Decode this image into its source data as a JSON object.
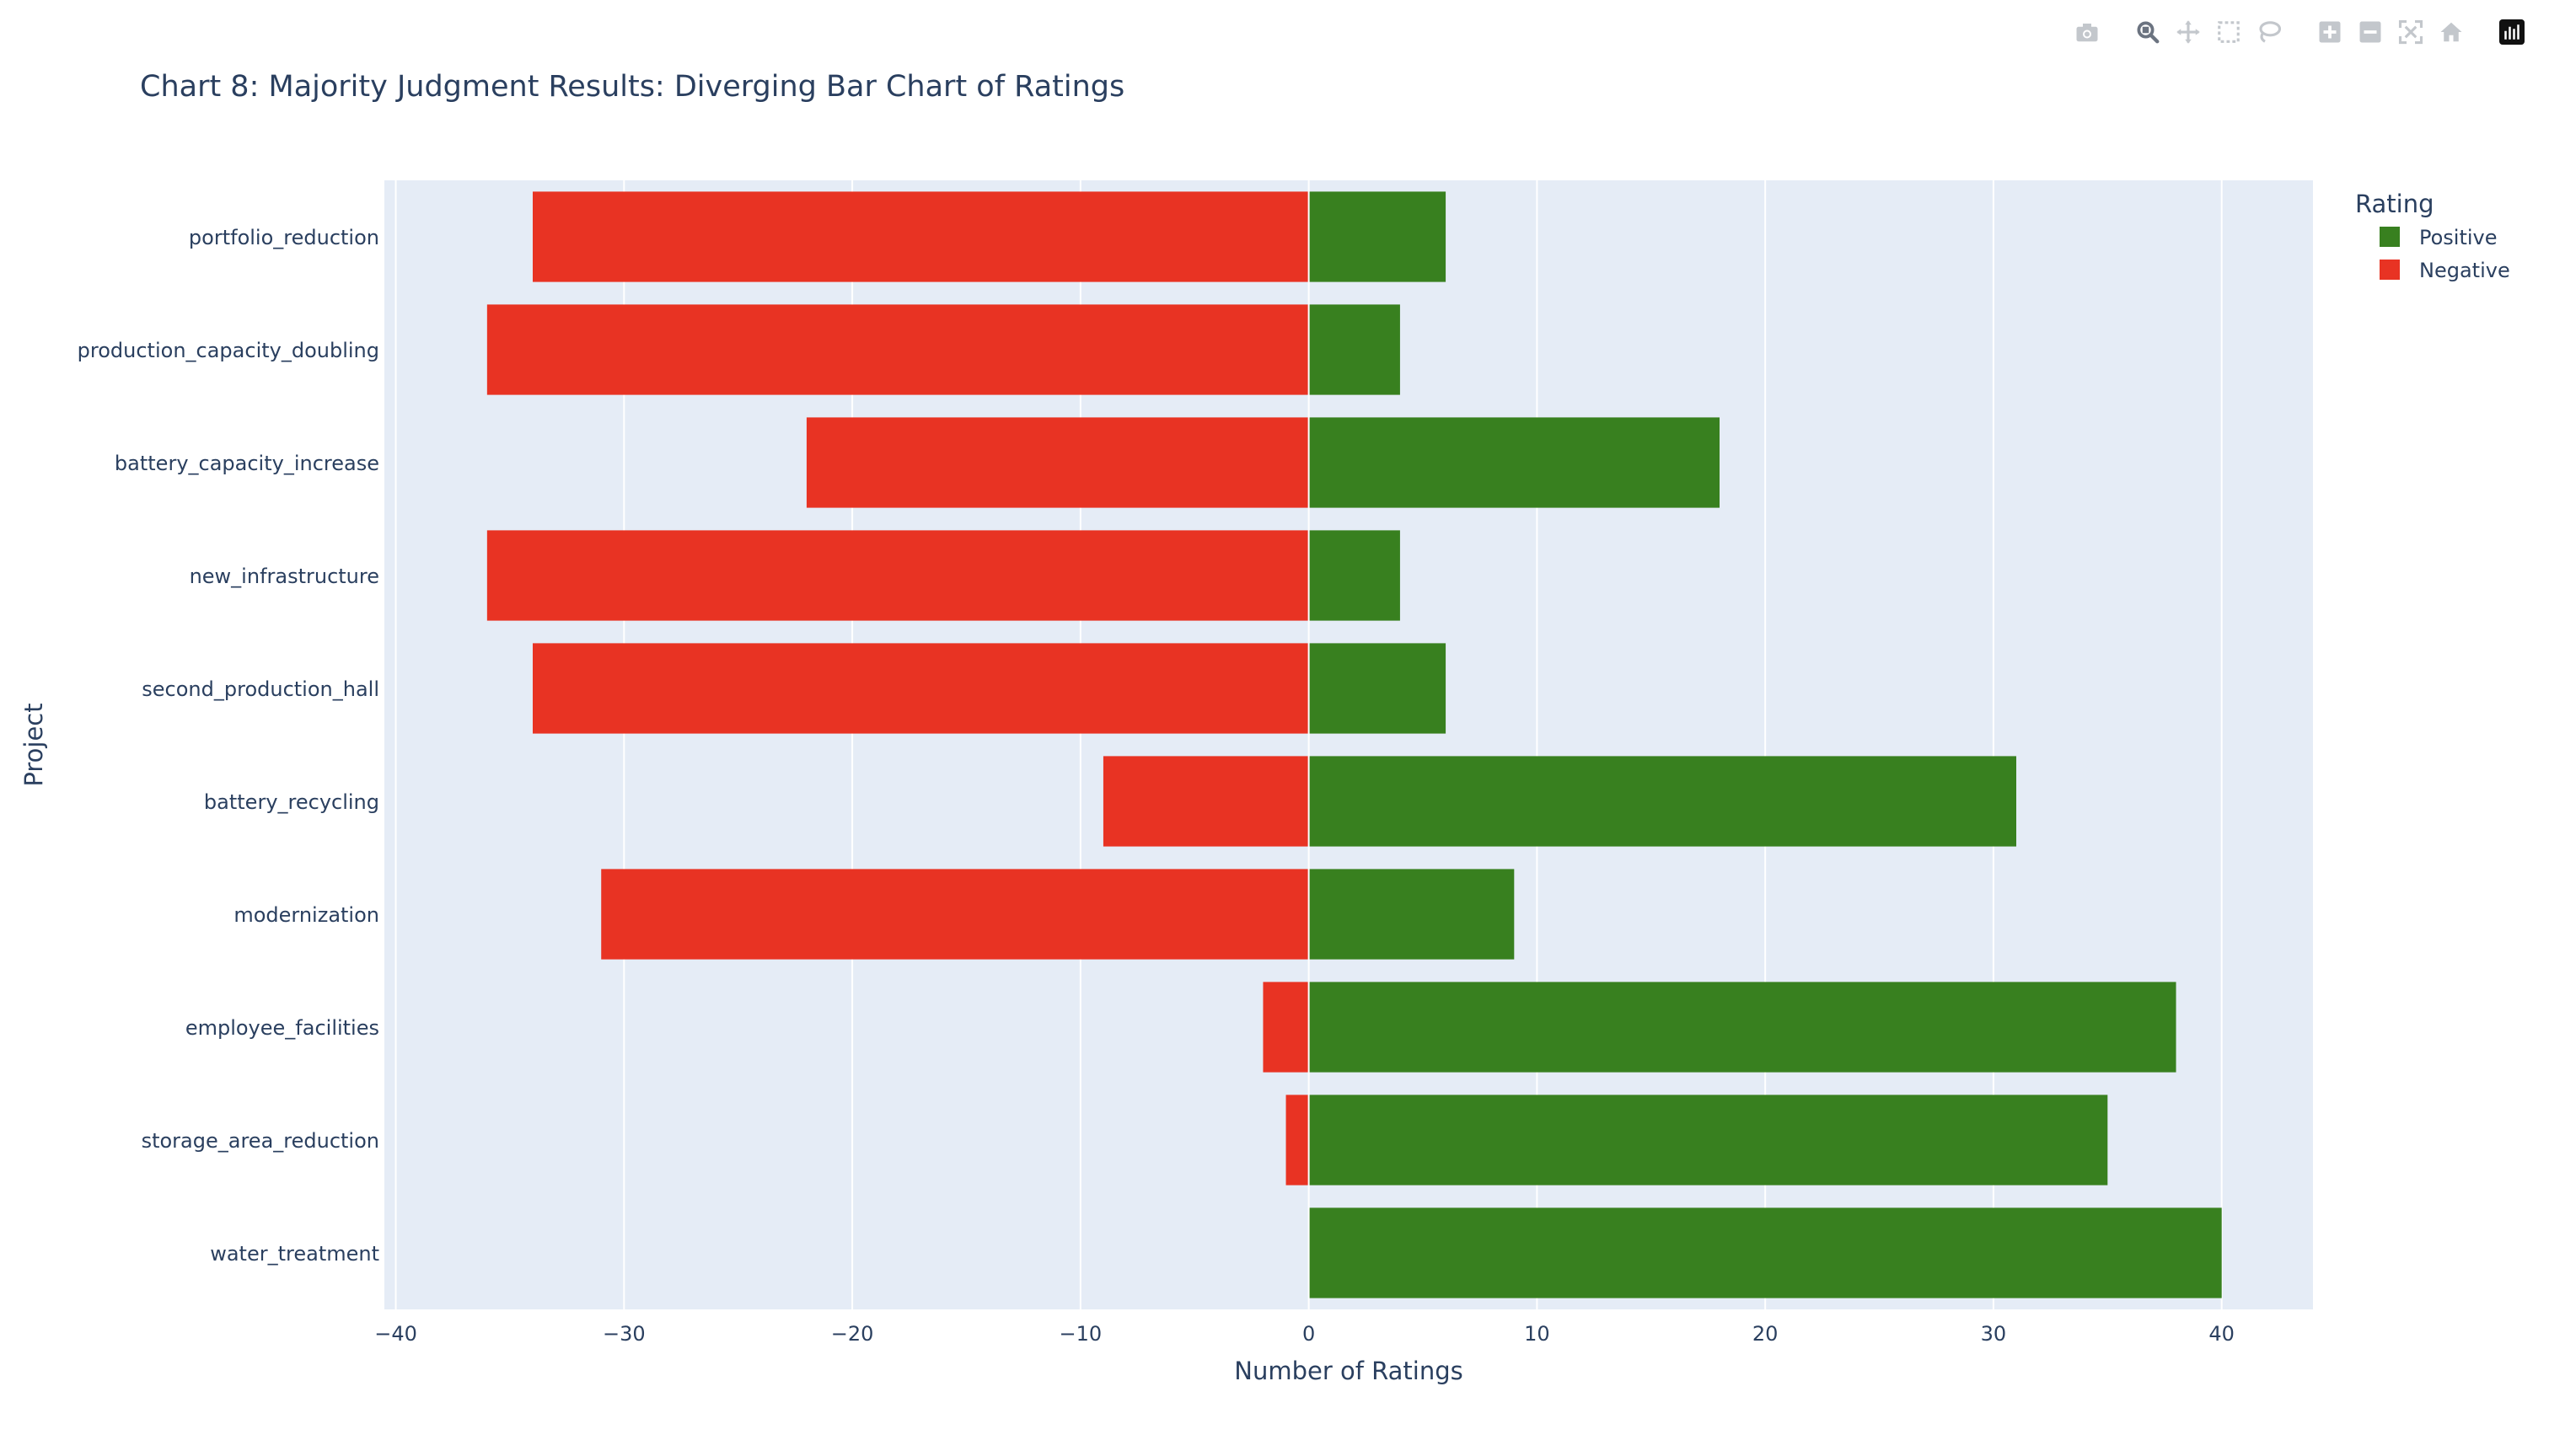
{
  "chart_data": {
    "type": "bar",
    "orientation": "horizontal",
    "barmode": "relative",
    "title": "Chart 8: Majority Judgment Results: Diverging Bar Chart of Ratings",
    "xlabel": "Number of Ratings",
    "ylabel": "Project",
    "xlim": [
      -40.5,
      44
    ],
    "xticks": [
      -40,
      -30,
      -20,
      -10,
      0,
      10,
      20,
      30,
      40
    ],
    "xtick_labels": [
      "−40",
      "−30",
      "−20",
      "−10",
      "0",
      "10",
      "20",
      "30",
      "40"
    ],
    "categories": [
      "portfolio_reduction",
      "production_capacity_doubling",
      "battery_capacity_increase",
      "new_infrastructure",
      "second_production_hall",
      "battery_recycling",
      "modernization",
      "employee_facilities",
      "storage_area_reduction",
      "water_treatment"
    ],
    "series": [
      {
        "name": "Positive",
        "color": "#38801f",
        "values": [
          6,
          4,
          18,
          4,
          6,
          31,
          9,
          38,
          35,
          40
        ]
      },
      {
        "name": "Negative",
        "color": "#e83323",
        "values": [
          -34,
          -36,
          -22,
          -36,
          -34,
          -9,
          -31,
          -2,
          -1,
          0
        ]
      }
    ],
    "grid": true,
    "legend": {
      "title": "Rating",
      "placement": "top-right"
    }
  },
  "colors": {
    "plot_background": "#e5ecf6",
    "text": "#2a3f5f",
    "grid": "#ffffff"
  },
  "modebar": {
    "icons": [
      "camera-icon",
      "zoom-icon",
      "pan-icon",
      "box-select-icon",
      "lasso-icon",
      "zoom-in-icon",
      "zoom-out-icon",
      "autoscale-icon",
      "home-icon",
      "plotly-logo-icon"
    ]
  }
}
